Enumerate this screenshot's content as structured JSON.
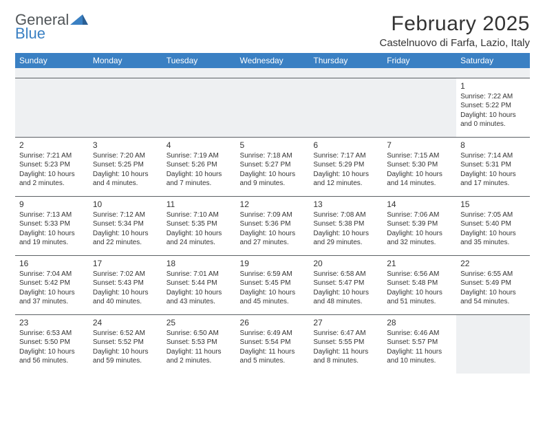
{
  "brand": {
    "line1": "General",
    "line2": "Blue"
  },
  "title": "February 2025",
  "location": "Castelnuovo di Farfa, Lazio, Italy",
  "colors": {
    "header_bar": "#3a80c3",
    "spacer_bg": "#eef0f2",
    "cell_border": "#5a5f63",
    "text": "#333333",
    "brand_gray": "#505558",
    "brand_blue": "#3a80c3",
    "background": "#ffffff"
  },
  "typography": {
    "title_fontsize": 30,
    "location_fontsize": 15,
    "dow_fontsize": 12,
    "daynum_fontsize": 12,
    "body_fontsize": 10
  },
  "dow": [
    "Sunday",
    "Monday",
    "Tuesday",
    "Wednesday",
    "Thursday",
    "Friday",
    "Saturday"
  ],
  "weeks": [
    [
      null,
      null,
      null,
      null,
      null,
      null,
      {
        "n": "1",
        "sunrise": "Sunrise: 7:22 AM",
        "sunset": "Sunset: 5:22 PM",
        "day1": "Daylight: 10 hours",
        "day2": "and 0 minutes."
      }
    ],
    [
      {
        "n": "2",
        "sunrise": "Sunrise: 7:21 AM",
        "sunset": "Sunset: 5:23 PM",
        "day1": "Daylight: 10 hours",
        "day2": "and 2 minutes."
      },
      {
        "n": "3",
        "sunrise": "Sunrise: 7:20 AM",
        "sunset": "Sunset: 5:25 PM",
        "day1": "Daylight: 10 hours",
        "day2": "and 4 minutes."
      },
      {
        "n": "4",
        "sunrise": "Sunrise: 7:19 AM",
        "sunset": "Sunset: 5:26 PM",
        "day1": "Daylight: 10 hours",
        "day2": "and 7 minutes."
      },
      {
        "n": "5",
        "sunrise": "Sunrise: 7:18 AM",
        "sunset": "Sunset: 5:27 PM",
        "day1": "Daylight: 10 hours",
        "day2": "and 9 minutes."
      },
      {
        "n": "6",
        "sunrise": "Sunrise: 7:17 AM",
        "sunset": "Sunset: 5:29 PM",
        "day1": "Daylight: 10 hours",
        "day2": "and 12 minutes."
      },
      {
        "n": "7",
        "sunrise": "Sunrise: 7:15 AM",
        "sunset": "Sunset: 5:30 PM",
        "day1": "Daylight: 10 hours",
        "day2": "and 14 minutes."
      },
      {
        "n": "8",
        "sunrise": "Sunrise: 7:14 AM",
        "sunset": "Sunset: 5:31 PM",
        "day1": "Daylight: 10 hours",
        "day2": "and 17 minutes."
      }
    ],
    [
      {
        "n": "9",
        "sunrise": "Sunrise: 7:13 AM",
        "sunset": "Sunset: 5:33 PM",
        "day1": "Daylight: 10 hours",
        "day2": "and 19 minutes."
      },
      {
        "n": "10",
        "sunrise": "Sunrise: 7:12 AM",
        "sunset": "Sunset: 5:34 PM",
        "day1": "Daylight: 10 hours",
        "day2": "and 22 minutes."
      },
      {
        "n": "11",
        "sunrise": "Sunrise: 7:10 AM",
        "sunset": "Sunset: 5:35 PM",
        "day1": "Daylight: 10 hours",
        "day2": "and 24 minutes."
      },
      {
        "n": "12",
        "sunrise": "Sunrise: 7:09 AM",
        "sunset": "Sunset: 5:36 PM",
        "day1": "Daylight: 10 hours",
        "day2": "and 27 minutes."
      },
      {
        "n": "13",
        "sunrise": "Sunrise: 7:08 AM",
        "sunset": "Sunset: 5:38 PM",
        "day1": "Daylight: 10 hours",
        "day2": "and 29 minutes."
      },
      {
        "n": "14",
        "sunrise": "Sunrise: 7:06 AM",
        "sunset": "Sunset: 5:39 PM",
        "day1": "Daylight: 10 hours",
        "day2": "and 32 minutes."
      },
      {
        "n": "15",
        "sunrise": "Sunrise: 7:05 AM",
        "sunset": "Sunset: 5:40 PM",
        "day1": "Daylight: 10 hours",
        "day2": "and 35 minutes."
      }
    ],
    [
      {
        "n": "16",
        "sunrise": "Sunrise: 7:04 AM",
        "sunset": "Sunset: 5:42 PM",
        "day1": "Daylight: 10 hours",
        "day2": "and 37 minutes."
      },
      {
        "n": "17",
        "sunrise": "Sunrise: 7:02 AM",
        "sunset": "Sunset: 5:43 PM",
        "day1": "Daylight: 10 hours",
        "day2": "and 40 minutes."
      },
      {
        "n": "18",
        "sunrise": "Sunrise: 7:01 AM",
        "sunset": "Sunset: 5:44 PM",
        "day1": "Daylight: 10 hours",
        "day2": "and 43 minutes."
      },
      {
        "n": "19",
        "sunrise": "Sunrise: 6:59 AM",
        "sunset": "Sunset: 5:45 PM",
        "day1": "Daylight: 10 hours",
        "day2": "and 45 minutes."
      },
      {
        "n": "20",
        "sunrise": "Sunrise: 6:58 AM",
        "sunset": "Sunset: 5:47 PM",
        "day1": "Daylight: 10 hours",
        "day2": "and 48 minutes."
      },
      {
        "n": "21",
        "sunrise": "Sunrise: 6:56 AM",
        "sunset": "Sunset: 5:48 PM",
        "day1": "Daylight: 10 hours",
        "day2": "and 51 minutes."
      },
      {
        "n": "22",
        "sunrise": "Sunrise: 6:55 AM",
        "sunset": "Sunset: 5:49 PM",
        "day1": "Daylight: 10 hours",
        "day2": "and 54 minutes."
      }
    ],
    [
      {
        "n": "23",
        "sunrise": "Sunrise: 6:53 AM",
        "sunset": "Sunset: 5:50 PM",
        "day1": "Daylight: 10 hours",
        "day2": "and 56 minutes."
      },
      {
        "n": "24",
        "sunrise": "Sunrise: 6:52 AM",
        "sunset": "Sunset: 5:52 PM",
        "day1": "Daylight: 10 hours",
        "day2": "and 59 minutes."
      },
      {
        "n": "25",
        "sunrise": "Sunrise: 6:50 AM",
        "sunset": "Sunset: 5:53 PM",
        "day1": "Daylight: 11 hours",
        "day2": "and 2 minutes."
      },
      {
        "n": "26",
        "sunrise": "Sunrise: 6:49 AM",
        "sunset": "Sunset: 5:54 PM",
        "day1": "Daylight: 11 hours",
        "day2": "and 5 minutes."
      },
      {
        "n": "27",
        "sunrise": "Sunrise: 6:47 AM",
        "sunset": "Sunset: 5:55 PM",
        "day1": "Daylight: 11 hours",
        "day2": "and 8 minutes."
      },
      {
        "n": "28",
        "sunrise": "Sunrise: 6:46 AM",
        "sunset": "Sunset: 5:57 PM",
        "day1": "Daylight: 11 hours",
        "day2": "and 10 minutes."
      },
      null
    ]
  ]
}
